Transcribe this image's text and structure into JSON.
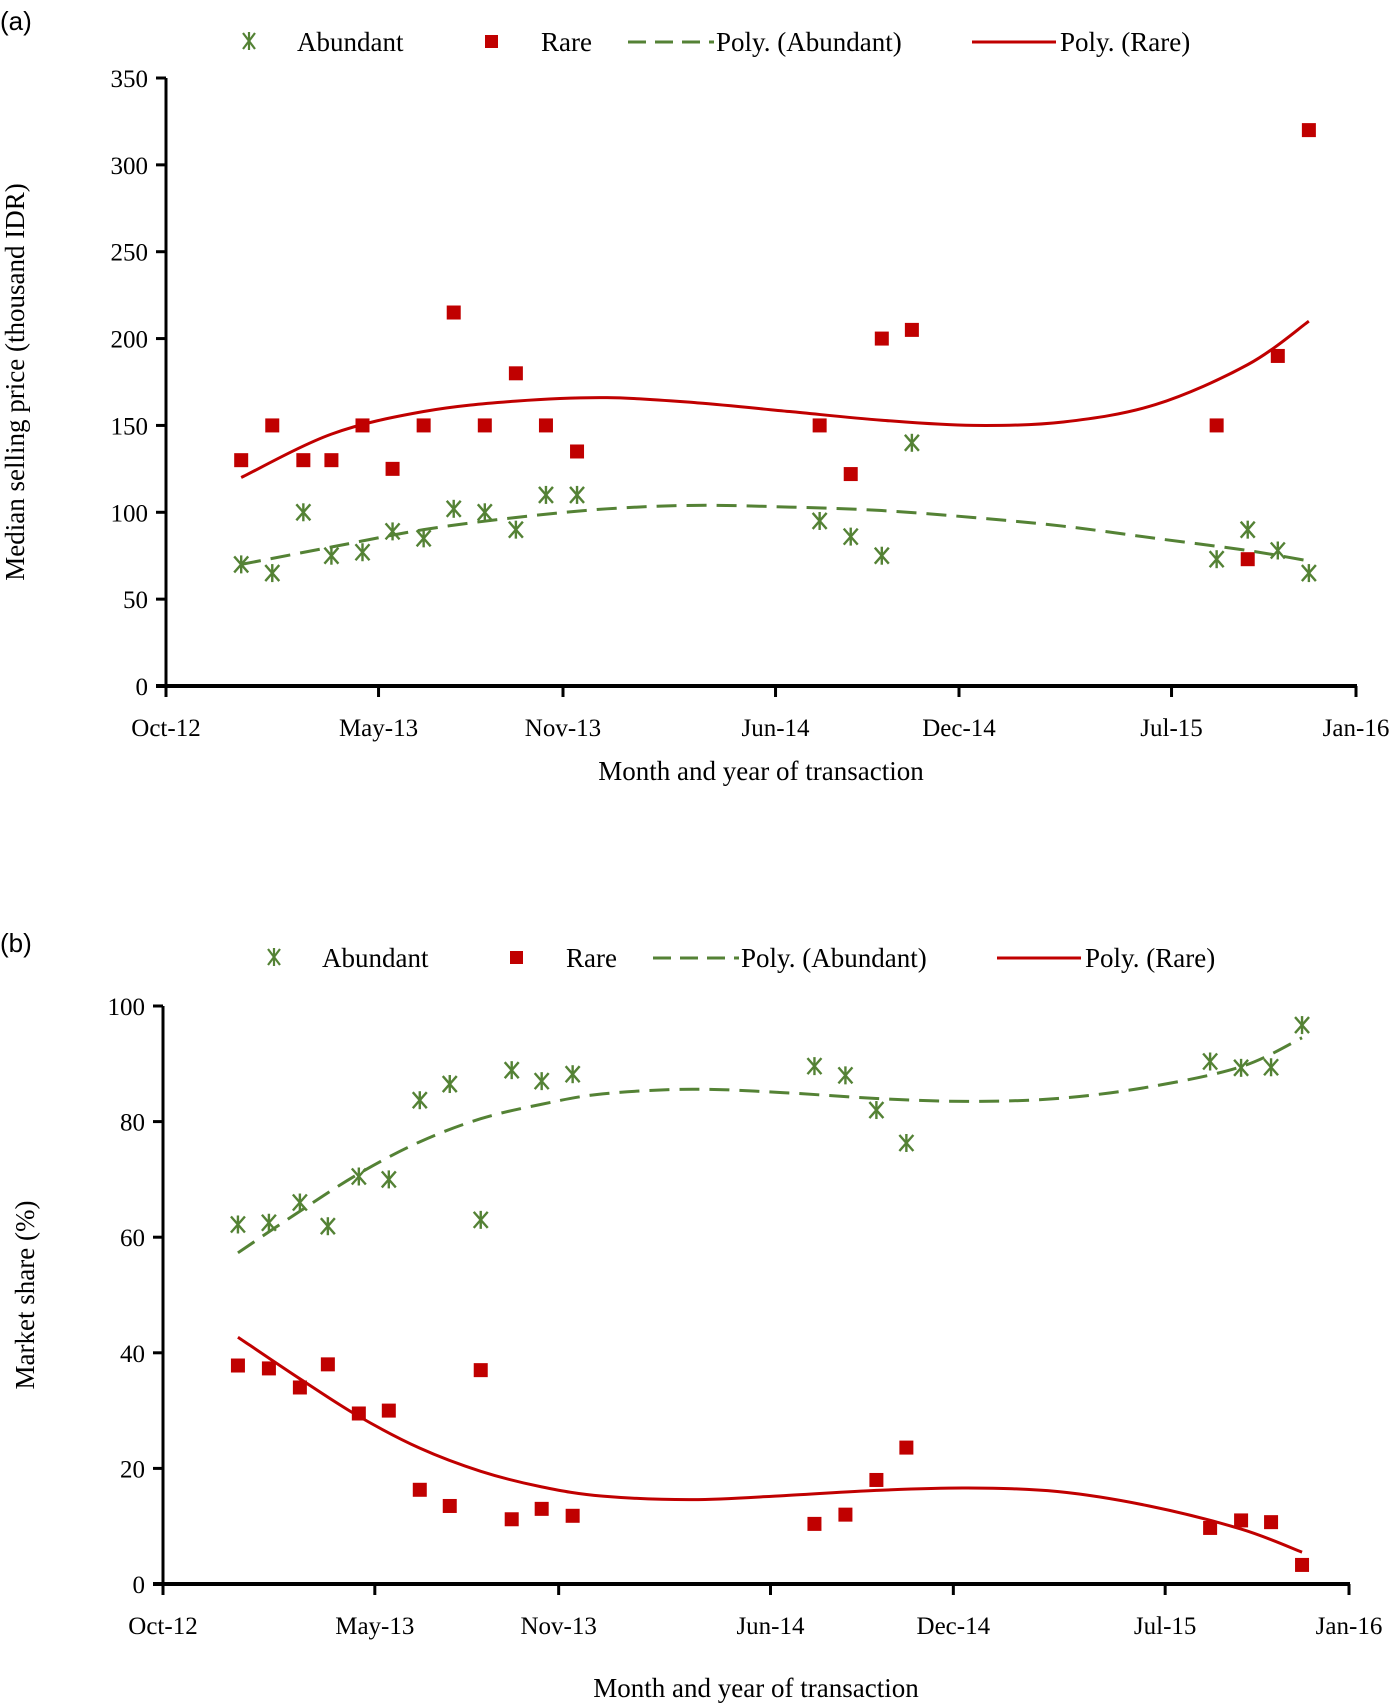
{
  "chart_data": [
    {
      "panel": "(a)",
      "type": "scatter",
      "title": "",
      "xlabel": "Month and year of transaction",
      "ylabel": "Median selling price (thousand IDR)",
      "ylim": [
        0,
        350
      ],
      "yticks": [
        0,
        50,
        100,
        150,
        200,
        250,
        300,
        350
      ],
      "xlim": [
        "2012-10",
        "2016-01"
      ],
      "xticks": [
        {
          "date": "2012-10",
          "label": "Oct-12"
        },
        {
          "date": "2013-05",
          "label": "May-13"
        },
        {
          "date": "2013-11",
          "label": "Nov-13"
        },
        {
          "date": "2014-06",
          "label": "Jun-14"
        },
        {
          "date": "2014-12",
          "label": "Dec-14"
        },
        {
          "date": "2015-07",
          "label": "Jul-15"
        },
        {
          "date": "2016-01",
          "label": "Jan-16"
        }
      ],
      "grid": false,
      "legend": {
        "position": "top",
        "entries": [
          "Abundant",
          "Rare",
          "Poly. (Abundant)",
          "Poly. (Rare)"
        ]
      },
      "series": [
        {
          "name": "Abundant",
          "marker": "asterisk",
          "color": "#548235",
          "x": [
            "2012-12",
            "2013-01",
            "2013-02",
            "2013-03",
            "2013-04",
            "2013-05",
            "2013-06",
            "2013-07",
            "2013-08",
            "2013-09",
            "2013-10",
            "2013-11",
            "2014-07",
            "2014-08",
            "2014-09",
            "2014-10",
            "2015-08",
            "2015-09",
            "2015-10",
            "2015-11"
          ],
          "y": [
            70,
            65,
            100,
            75,
            77,
            89,
            85,
            102,
            100,
            90,
            110,
            110,
            95,
            86,
            75,
            140,
            73,
            90,
            78,
            65
          ]
        },
        {
          "name": "Rare",
          "marker": "square",
          "color": "#C00000",
          "x": [
            "2012-12",
            "2013-01",
            "2013-02",
            "2013-03",
            "2013-04",
            "2013-05",
            "2013-06",
            "2013-07",
            "2013-08",
            "2013-09",
            "2013-10",
            "2013-11",
            "2014-07",
            "2014-08",
            "2014-09",
            "2014-10",
            "2015-08",
            "2015-09",
            "2015-10",
            "2015-11"
          ],
          "y": [
            130,
            150,
            130,
            130,
            150,
            125,
            150,
            215,
            150,
            180,
            150,
            135,
            150,
            122,
            200,
            205,
            150,
            73,
            190,
            320
          ]
        },
        {
          "name": "Poly. (Abundant)",
          "line": "dashed",
          "color": "#548235",
          "x": [
            "2012-12",
            "2013-03",
            "2013-06",
            "2013-09",
            "2013-12",
            "2014-03",
            "2014-06",
            "2014-09",
            "2014-12",
            "2015-03",
            "2015-06",
            "2015-09",
            "2015-11"
          ],
          "y": [
            70,
            80,
            90,
            97,
            102,
            104,
            103,
            101,
            97,
            92,
            85,
            78,
            72
          ]
        },
        {
          "name": "Poly. (Rare)",
          "line": "solid",
          "color": "#C00000",
          "x": [
            "2012-12",
            "2013-03",
            "2013-06",
            "2013-09",
            "2013-12",
            "2014-03",
            "2014-06",
            "2014-09",
            "2014-12",
            "2015-03",
            "2015-06",
            "2015-09",
            "2015-11"
          ],
          "y": [
            120,
            145,
            158,
            164,
            166,
            163,
            158,
            153,
            150,
            152,
            162,
            185,
            210
          ]
        }
      ]
    },
    {
      "panel": "(b)",
      "type": "scatter",
      "title": "",
      "xlabel": "Month and year of transaction",
      "ylabel": "Market share (%)",
      "ylim": [
        0,
        100
      ],
      "yticks": [
        0,
        20,
        40,
        60,
        80,
        100
      ],
      "xlim": [
        "2012-10",
        "2016-01"
      ],
      "xticks": [
        {
          "date": "2012-10",
          "label": "Oct-12"
        },
        {
          "date": "2013-05",
          "label": "May-13"
        },
        {
          "date": "2013-11",
          "label": "Nov-13"
        },
        {
          "date": "2014-06",
          "label": "Jun-14"
        },
        {
          "date": "2014-12",
          "label": "Dec-14"
        },
        {
          "date": "2015-07",
          "label": "Jul-15"
        },
        {
          "date": "2016-01",
          "label": "Jan-16"
        }
      ],
      "grid": false,
      "legend": {
        "position": "top",
        "entries": [
          "Abundant",
          "Rare",
          "Poly. (Abundant)",
          "Poly. (Rare)"
        ]
      },
      "series": [
        {
          "name": "Abundant",
          "marker": "asterisk",
          "color": "#548235",
          "x": [
            "2012-12",
            "2013-01",
            "2013-02",
            "2013-03",
            "2013-04",
            "2013-05",
            "2013-06",
            "2013-07",
            "2013-08",
            "2013-09",
            "2013-10",
            "2013-11",
            "2014-07",
            "2014-08",
            "2014-09",
            "2014-10",
            "2015-08",
            "2015-09",
            "2015-10",
            "2015-11"
          ],
          "y": [
            62.2,
            62.5,
            66,
            61.9,
            70.5,
            70,
            83.7,
            86.5,
            63,
            88.9,
            87,
            88.2,
            89.6,
            88,
            82,
            76.3,
            90.4,
            89.3,
            89.4,
            96.7
          ]
        },
        {
          "name": "Rare",
          "marker": "square",
          "color": "#C00000",
          "x": [
            "2012-12",
            "2013-01",
            "2013-02",
            "2013-03",
            "2013-04",
            "2013-05",
            "2013-06",
            "2013-07",
            "2013-08",
            "2013-09",
            "2013-10",
            "2013-11",
            "2014-07",
            "2014-08",
            "2014-09",
            "2014-10",
            "2015-08",
            "2015-09",
            "2015-10",
            "2015-11"
          ],
          "y": [
            37.8,
            37.3,
            34,
            38,
            29.5,
            30,
            16.3,
            13.5,
            37,
            11.2,
            13,
            11.8,
            10.4,
            12,
            18,
            23.6,
            9.7,
            11,
            10.7,
            3.3
          ]
        },
        {
          "name": "Poly. (Abundant)",
          "line": "dashed",
          "color": "#548235",
          "x": [
            "2012-12",
            "2013-02",
            "2013-04",
            "2013-06",
            "2013-08",
            "2013-10",
            "2013-12",
            "2014-03",
            "2014-06",
            "2014-09",
            "2014-12",
            "2015-03",
            "2015-06",
            "2015-09",
            "2015-11"
          ],
          "y": [
            57.3,
            64.5,
            71,
            76.5,
            80.5,
            83,
            84.8,
            85.6,
            85,
            84,
            83.5,
            84,
            86,
            89.5,
            94.5
          ]
        },
        {
          "name": "Poly. (Rare)",
          "line": "solid",
          "color": "#C00000",
          "x": [
            "2012-12",
            "2013-02",
            "2013-04",
            "2013-06",
            "2013-08",
            "2013-10",
            "2013-12",
            "2014-03",
            "2014-06",
            "2014-09",
            "2014-12",
            "2015-03",
            "2015-06",
            "2015-09",
            "2015-11"
          ],
          "y": [
            42.7,
            35.5,
            29,
            23.5,
            19.5,
            16.8,
            15.2,
            14.6,
            15.3,
            16.2,
            16.6,
            16,
            13.5,
            9.5,
            5.5
          ]
        }
      ]
    }
  ]
}
